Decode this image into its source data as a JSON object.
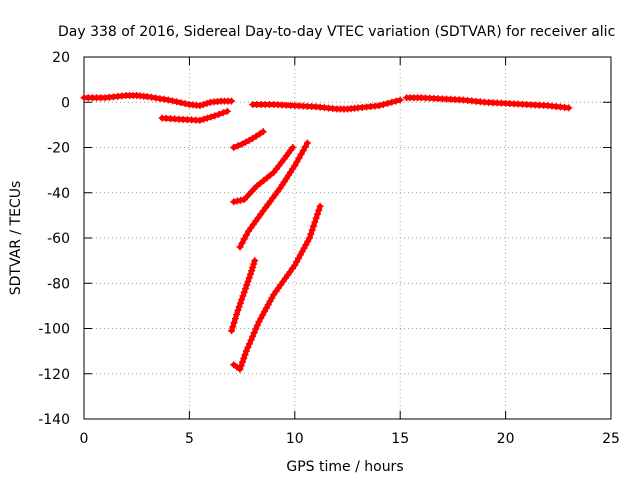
{
  "chart_data": {
    "type": "scatter",
    "title": "Day 338 of 2016, Sidereal Day-to-day VTEC variation (SDTVAR) for receiver alic",
    "xlabel": "GPS time / hours",
    "ylabel": "SDTVAR / TECUs",
    "xlim": [
      0,
      25
    ],
    "ylim": [
      -140,
      20
    ],
    "x_ticks": [
      0,
      5,
      10,
      15,
      20,
      25
    ],
    "y_ticks": [
      20,
      0,
      -20,
      -40,
      -60,
      -80,
      -100,
      -120,
      -140
    ],
    "grid": true,
    "marker": "plus",
    "series_color": "#ff0000",
    "series": [
      {
        "x": [
          0,
          1,
          2,
          2.5,
          3,
          4,
          5,
          5.5,
          6,
          6.5,
          7
        ],
        "y": [
          2,
          2,
          3,
          3,
          2.5,
          1,
          -1,
          -1.5,
          0,
          0.5,
          0.5
        ]
      },
      {
        "x": [
          3.7,
          4.5,
          5.5,
          6.2,
          6.8
        ],
        "y": [
          -7,
          -7.5,
          -8,
          -6,
          -4
        ]
      },
      {
        "x": [
          8,
          9,
          10,
          11,
          12,
          12.5,
          13,
          14,
          15
        ],
        "y": [
          -1,
          -1,
          -1.5,
          -2,
          -3,
          -3,
          -2.5,
          -1.5,
          1
        ]
      },
      {
        "x": [
          15.3,
          16,
          17,
          18,
          19,
          20,
          21,
          22,
          23
        ],
        "y": [
          2,
          2,
          1.5,
          1,
          0,
          -0.5,
          -1,
          -1.5,
          -2.5
        ]
      },
      {
        "x": [
          7.1,
          7.5,
          8,
          8.5
        ],
        "y": [
          -20,
          -18.5,
          -16,
          -13
        ]
      },
      {
        "x": [
          7.1,
          7.6,
          8.2,
          9,
          9.5,
          9.9
        ],
        "y": [
          -44,
          -43,
          -37,
          -31,
          -25,
          -20
        ]
      },
      {
        "x": [
          7.4,
          7.8,
          8.5,
          9.3,
          10,
          10.6
        ],
        "y": [
          -64,
          -57,
          -48,
          -38,
          -28,
          -18
        ]
      },
      {
        "x": [
          7,
          7.3,
          7.6,
          7.9,
          8.1
        ],
        "y": [
          -101,
          -92,
          -84,
          -76,
          -70
        ]
      },
      {
        "x": [
          7.1,
          7.4,
          7.7,
          8.3,
          9,
          10,
          10.7,
          11.2
        ],
        "y": [
          -116,
          -118,
          -110,
          -97,
          -85,
          -72,
          -60,
          -46
        ]
      }
    ]
  }
}
